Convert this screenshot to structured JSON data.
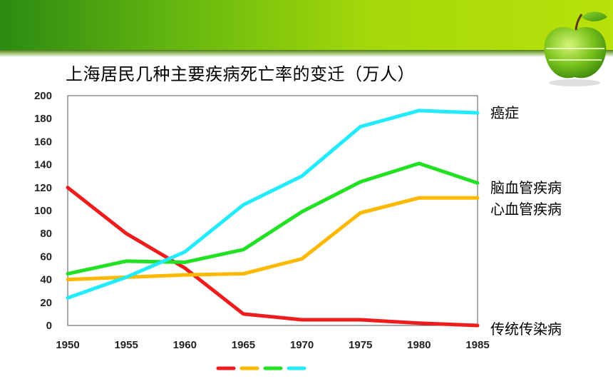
{
  "title": "上海居民几种主要疾病死亡率的变迁（万人）",
  "icons": {
    "decoration": "green-apple-icon"
  },
  "chart_data": {
    "type": "line",
    "title": "上海居民几种主要疾病死亡率的变迁（万人）",
    "xlabel": "",
    "ylabel": "",
    "x": [
      1950,
      1955,
      1960,
      1965,
      1970,
      1975,
      1980,
      1985
    ],
    "xlim": [
      1950,
      1985
    ],
    "ylim": [
      0,
      200
    ],
    "yticks": [
      0,
      20,
      40,
      60,
      80,
      100,
      120,
      140,
      160,
      180,
      200
    ],
    "grid": false,
    "legend": "bottom",
    "series": [
      {
        "name": "传统传染病",
        "color": "#ee1c1c",
        "values": [
          120,
          80,
          50,
          10,
          5,
          5,
          2,
          0
        ]
      },
      {
        "name": "心血管疾病",
        "color": "#ffb800",
        "values": [
          40,
          42,
          44,
          45,
          58,
          98,
          111,
          111
        ]
      },
      {
        "name": "脑血管疾病",
        "color": "#22e022",
        "values": [
          45,
          56,
          55,
          66,
          99,
          125,
          141,
          124
        ]
      },
      {
        "name": "癌症",
        "color": "#22eaff",
        "values": [
          24,
          42,
          64,
          105,
          130,
          173,
          187,
          185
        ]
      }
    ]
  }
}
